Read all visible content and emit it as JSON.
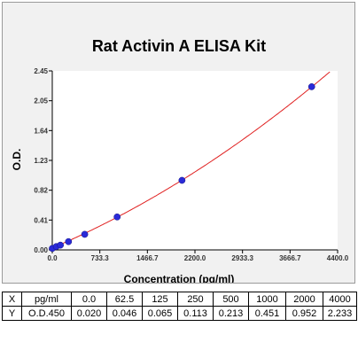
{
  "chart_data": {
    "type": "scatter",
    "title": "Rat Activin A ELISA Kit",
    "xlabel": "Concentration (pg/ml)",
    "ylabel": "O.D.",
    "x_ticks": [
      "0.0",
      "733.3",
      "1466.7",
      "2200.0",
      "2933.3",
      "3666.7",
      "4400.0"
    ],
    "y_ticks": [
      "0.00",
      "0.41",
      "0.82",
      "1.23",
      "1.64",
      "2.05",
      "2.45"
    ],
    "xlim": [
      0,
      4400
    ],
    "ylim": [
      0,
      2.45
    ],
    "series": [
      {
        "x": [
          0,
          62.5,
          125,
          250,
          500,
          1000,
          2000,
          4000
        ],
        "y": [
          0.02,
          0.046,
          0.065,
          0.113,
          0.213,
          0.451,
          0.952,
          2.233
        ]
      }
    ],
    "fit_curve": {
      "type": "polynomial-2",
      "coefficients": [
        0.026,
        0.000378,
        4.33e-08
      ]
    },
    "colors": {
      "points": "#2a2ad8",
      "curve": "#e02020",
      "plot_bg": "#ffffff",
      "frame_bg": "#f1f1f1"
    }
  },
  "table": {
    "rows": [
      [
        "X",
        "pg/ml",
        "0.0",
        "62.5",
        "125",
        "250",
        "500",
        "1000",
        "2000",
        "4000"
      ],
      [
        "Y",
        "O.D.450",
        "0.020",
        "0.046",
        "0.065",
        "0.113",
        "0.213",
        "0.451",
        "0.952",
        "2.233"
      ]
    ]
  }
}
